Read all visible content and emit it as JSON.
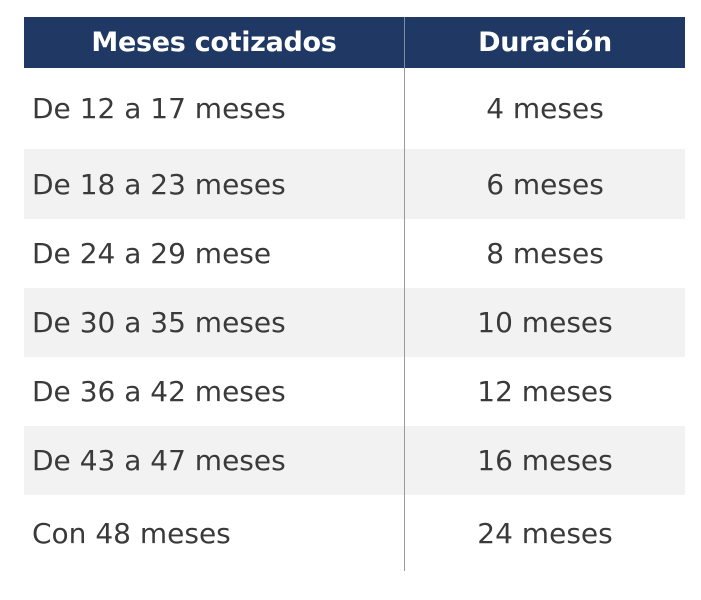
{
  "table": {
    "headers": [
      "Meses cotizados",
      "Duración"
    ],
    "rows": [
      [
        "De 12 a 17 meses",
        "4 meses"
      ],
      [
        "De 18 a 23 meses",
        "6 meses"
      ],
      [
        "De 24 a 29 mese",
        "8 meses"
      ],
      [
        "De 30 a 35 meses",
        "10 meses"
      ],
      [
        "De 36 a 42 meses",
        "12 meses"
      ],
      [
        "De 43 a 47 meses",
        "16 meses"
      ],
      [
        "Con 48 meses",
        "24 meses"
      ]
    ]
  },
  "colors": {
    "header_bg": "#1f3864",
    "header_text": "#ffffff",
    "row_shade": "#f2f2f2",
    "body_text": "#3a3a3a"
  }
}
